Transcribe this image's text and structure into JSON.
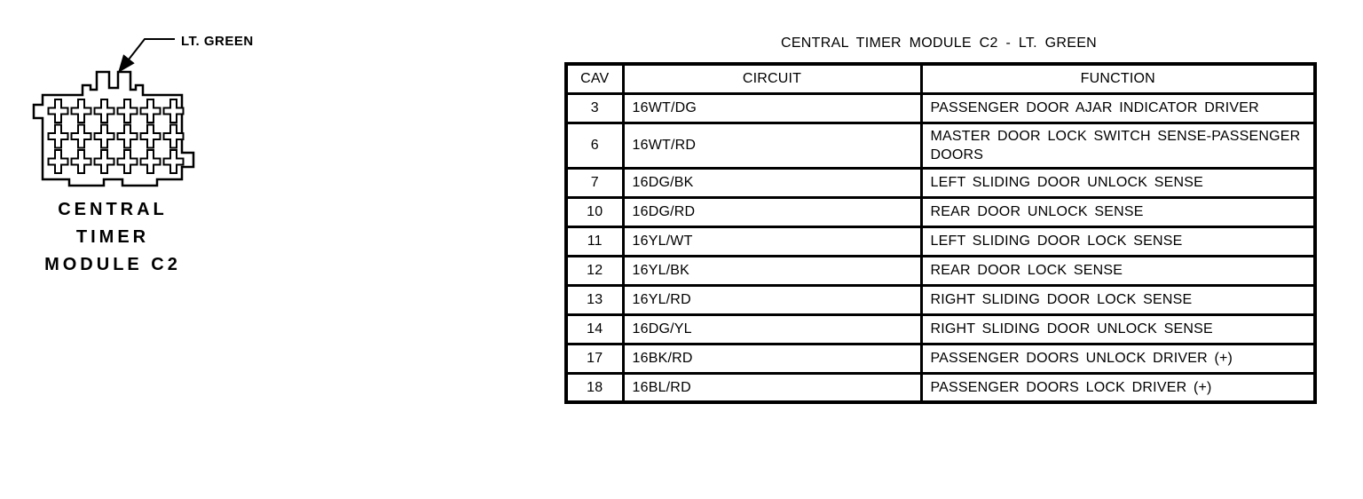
{
  "colors": {
    "ink": "#000000",
    "background": "#ffffff"
  },
  "connector": {
    "pin_label": "LT. GREEN",
    "caption_lines": [
      "CENTRAL",
      "TIMER",
      "MODULE C2"
    ],
    "pin_rows": 3,
    "pin_cols": 6
  },
  "table": {
    "title": "CENTRAL TIMER MODULE C2 - LT. GREEN",
    "columns": [
      "CAV",
      "CIRCUIT",
      "FUNCTION"
    ],
    "rows": [
      {
        "cav": "3",
        "circuit": "16WT/DG",
        "function": "PASSENGER DOOR AJAR INDICATOR DRIVER"
      },
      {
        "cav": "6",
        "circuit": "16WT/RD",
        "function": "MASTER DOOR LOCK SWITCH SENSE-PASSENGER DOORS"
      },
      {
        "cav": "7",
        "circuit": "16DG/BK",
        "function": "LEFT SLIDING DOOR UNLOCK SENSE"
      },
      {
        "cav": "10",
        "circuit": "16DG/RD",
        "function": "REAR DOOR UNLOCK SENSE"
      },
      {
        "cav": "11",
        "circuit": "16YL/WT",
        "function": "LEFT SLIDING DOOR LOCK SENSE"
      },
      {
        "cav": "12",
        "circuit": "16YL/BK",
        "function": "REAR DOOR LOCK SENSE"
      },
      {
        "cav": "13",
        "circuit": "16YL/RD",
        "function": "RIGHT SLIDING DOOR LOCK SENSE"
      },
      {
        "cav": "14",
        "circuit": "16DG/YL",
        "function": "RIGHT SLIDING DOOR UNLOCK SENSE"
      },
      {
        "cav": "17",
        "circuit": "16BK/RD",
        "function": "PASSENGER DOORS UNLOCK DRIVER (+)"
      },
      {
        "cav": "18",
        "circuit": "16BL/RD",
        "function": "PASSENGER DOORS LOCK DRIVER (+)"
      }
    ]
  }
}
